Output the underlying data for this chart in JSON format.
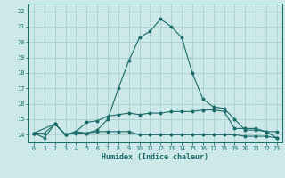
{
  "xlabel": "Humidex (Indice chaleur)",
  "bg_color": "#cce8e8",
  "grid_color": "#aacece",
  "line_color": "#1a6b6b",
  "xlim": [
    -0.5,
    23.5
  ],
  "ylim": [
    13.5,
    22.5
  ],
  "yticks": [
    14,
    15,
    16,
    17,
    18,
    19,
    20,
    21,
    22
  ],
  "xticks": [
    0,
    1,
    2,
    3,
    4,
    5,
    6,
    7,
    8,
    9,
    10,
    11,
    12,
    13,
    14,
    15,
    16,
    17,
    18,
    19,
    20,
    21,
    22,
    23
  ],
  "line1_x": [
    0,
    1,
    2,
    3,
    4,
    5,
    6,
    7,
    8,
    9,
    10,
    11,
    12,
    13,
    14,
    15,
    16,
    17,
    18,
    19,
    20,
    21,
    22,
    23
  ],
  "line1_y": [
    14.1,
    13.8,
    14.7,
    14.0,
    14.2,
    14.1,
    14.3,
    15.0,
    17.0,
    18.8,
    20.3,
    20.7,
    21.5,
    21.0,
    20.3,
    18.0,
    16.3,
    15.8,
    15.7,
    15.0,
    14.3,
    14.3,
    14.2,
    13.8
  ],
  "line2_x": [
    0,
    2,
    3,
    4,
    5,
    6,
    7,
    8,
    9,
    10,
    11,
    12,
    13,
    14,
    15,
    16,
    17,
    18,
    19,
    20,
    21,
    22,
    23
  ],
  "line2_y": [
    14.1,
    14.7,
    14.0,
    14.2,
    14.8,
    14.9,
    15.2,
    15.3,
    15.4,
    15.3,
    15.4,
    15.4,
    15.5,
    15.5,
    15.5,
    15.6,
    15.6,
    15.5,
    14.4,
    14.4,
    14.4,
    14.2,
    14.2
  ],
  "line3_x": [
    0,
    1,
    2,
    3,
    4,
    5,
    6,
    7,
    8,
    9,
    10,
    11,
    12,
    13,
    14,
    15,
    16,
    17,
    18,
    19,
    20,
    21,
    22,
    23
  ],
  "line3_y": [
    14.1,
    14.1,
    14.7,
    14.0,
    14.1,
    14.1,
    14.2,
    14.2,
    14.2,
    14.2,
    14.0,
    14.0,
    14.0,
    14.0,
    14.0,
    14.0,
    14.0,
    14.0,
    14.0,
    14.0,
    13.9,
    13.9,
    13.9,
    13.8
  ]
}
